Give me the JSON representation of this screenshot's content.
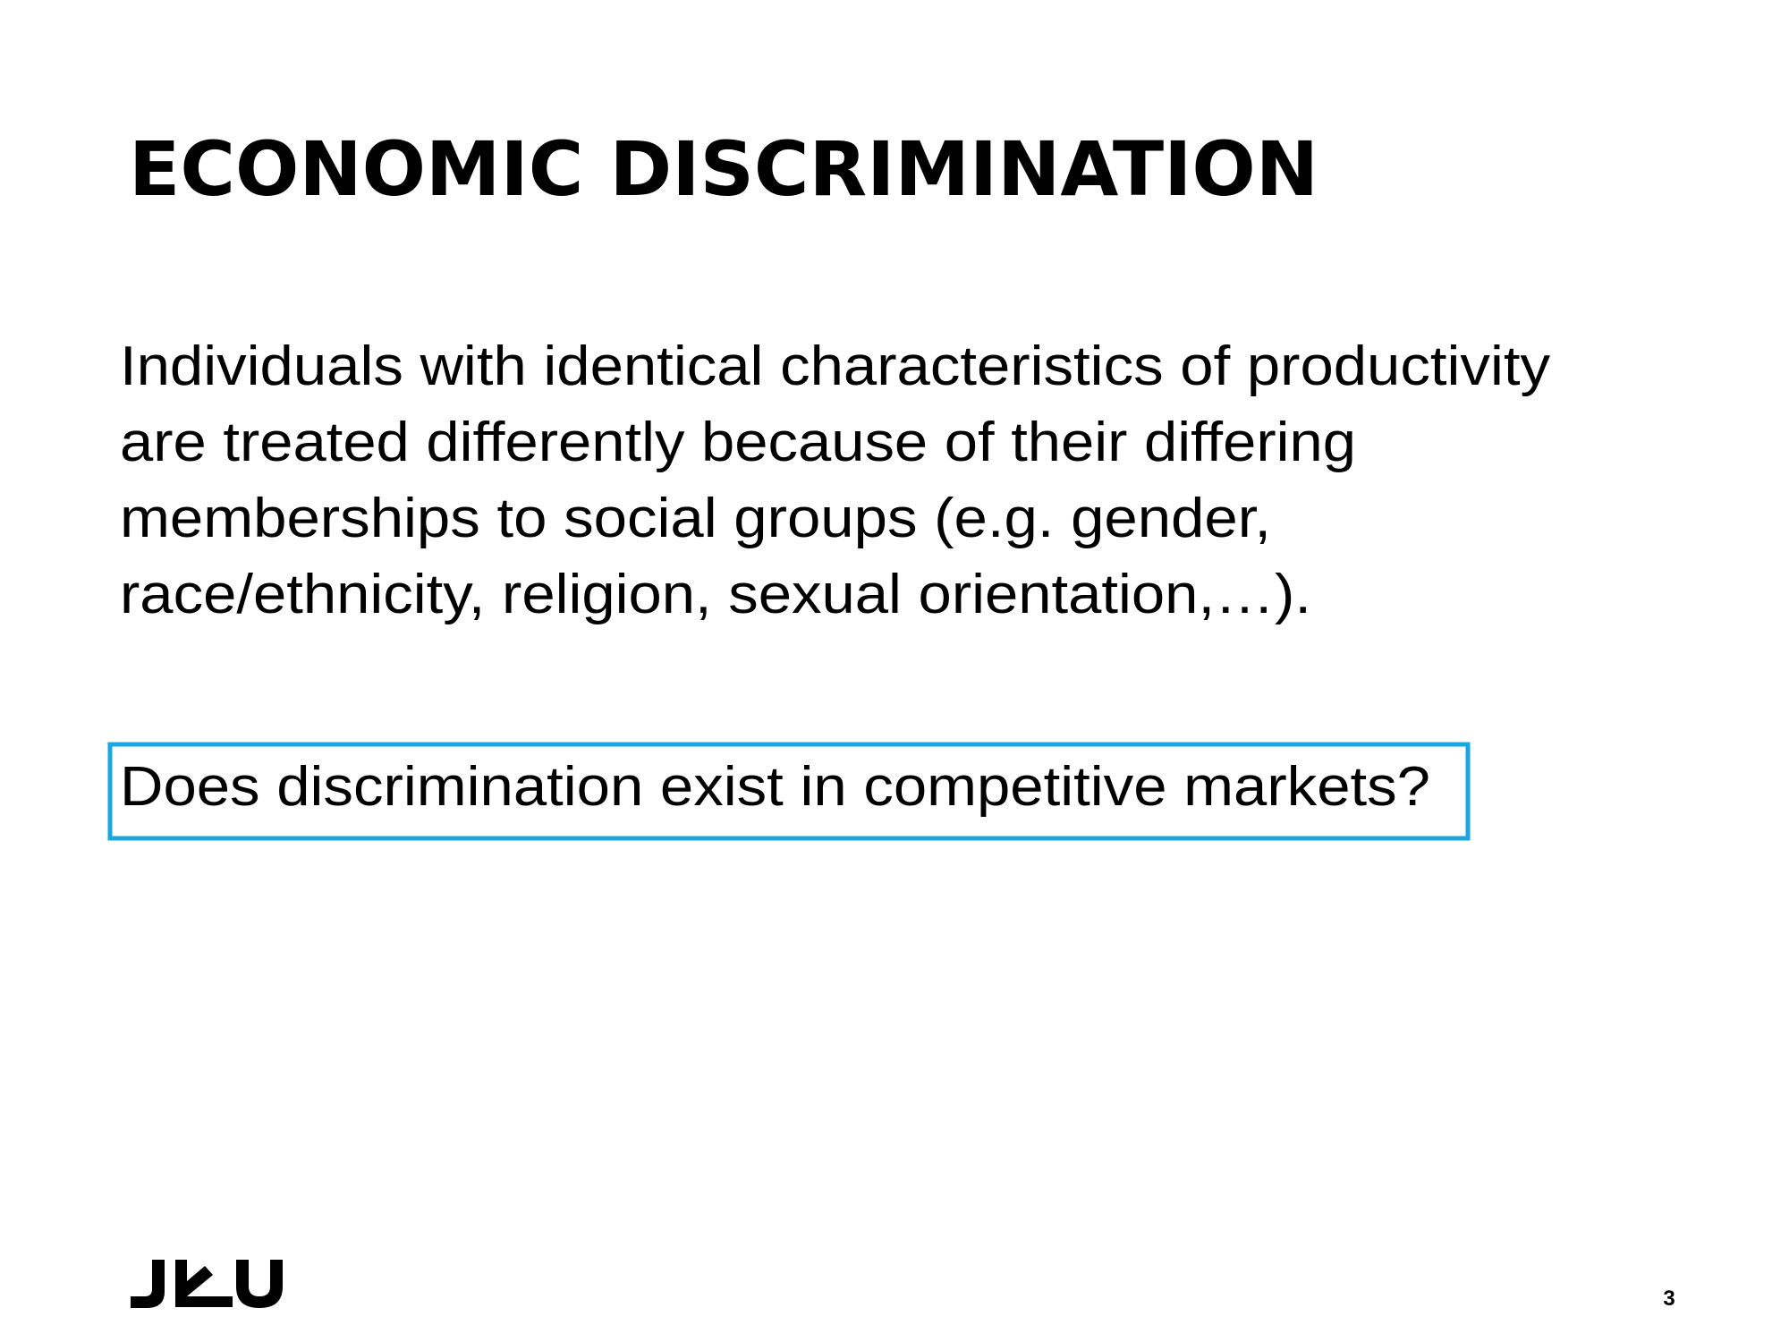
{
  "slide": {
    "title": "ECONOMIC DISCRIMINATION",
    "body": [
      "Individuals with identical characteristics of productivity",
      "are treated differently because of their differing",
      "memberships to social groups (e.g. gender,",
      "race/ethnicity, religion, sexual orientation,…)."
    ],
    "question": "Does discrimination exist in competitive markets?",
    "page_number": "3"
  }
}
